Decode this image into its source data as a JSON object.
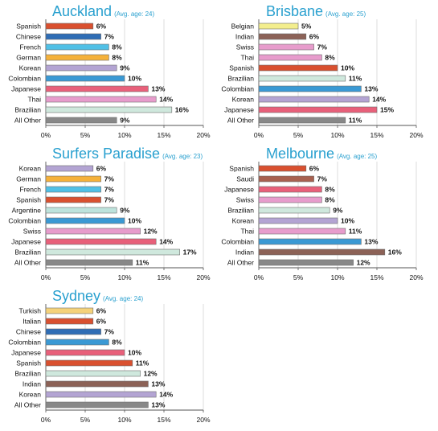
{
  "chart_data": [
    {
      "type": "bar",
      "title": "Auckland",
      "subtitle": "(Avg. age: 24)",
      "categories": [
        "Spanish",
        "Chinese",
        "French",
        "German",
        "Korean",
        "Colombian",
        "Japanese",
        "Thai",
        "Brazilian",
        "All Other"
      ],
      "values": [
        6,
        7,
        8,
        8,
        9,
        10,
        13,
        14,
        16,
        9
      ],
      "value_labels": [
        "6%",
        "7%",
        "8%",
        "8%",
        "9%",
        "10%",
        "13%",
        "14%",
        "16%",
        "9%"
      ],
      "colors": [
        "#d9502f",
        "#2f6db5",
        "#50c0e6",
        "#f5b13a",
        "#b3a4d3",
        "#3a99d4",
        "#e8607a",
        "#e79ccc",
        "#cfe8dd",
        "#888888"
      ],
      "xlim": [
        0,
        20
      ],
      "xticks": [
        "0%",
        "5%",
        "10%",
        "15%",
        "20%"
      ]
    },
    {
      "type": "bar",
      "title": "Brisbane",
      "subtitle": "(Avg. age: 25)",
      "categories": [
        "Belgian",
        "Indian",
        "Swiss",
        "Thai",
        "Spanish",
        "Brazilian",
        "Colombian",
        "Korean",
        "Japanese",
        "All Other"
      ],
      "values": [
        5,
        6,
        7,
        8,
        10,
        11,
        13,
        14,
        15,
        11
      ],
      "value_labels": [
        "5%",
        "6%",
        "7%",
        "8%",
        "10%",
        "11%",
        "13%",
        "14%",
        "15%",
        "11%"
      ],
      "colors": [
        "#f3ee8e",
        "#8c6257",
        "#e79ccc",
        "#e79ccc",
        "#d9502f",
        "#cfe8dd",
        "#3a99d4",
        "#b3a4d3",
        "#e8607a",
        "#888888"
      ],
      "xlim": [
        0,
        20
      ],
      "xticks": [
        "0%",
        "5%",
        "10%",
        "15%",
        "20%"
      ]
    },
    {
      "type": "bar",
      "title": "Surfers Paradise",
      "subtitle": "(Avg. age: 23)",
      "categories": [
        "Korean",
        "German",
        "French",
        "Spanish",
        "Argentine",
        "Colombian",
        "Swiss",
        "Japanese",
        "Brazilian",
        "All Other"
      ],
      "values": [
        6,
        7,
        7,
        7,
        9,
        10,
        12,
        14,
        17,
        11
      ],
      "value_labels": [
        "6%",
        "7%",
        "7%",
        "7%",
        "9%",
        "10%",
        "12%",
        "14%",
        "17%",
        "11%"
      ],
      "colors": [
        "#b3a4d3",
        "#f5b13a",
        "#50c0e6",
        "#d9502f",
        "#bde3dc",
        "#3a99d4",
        "#e79ccc",
        "#e8607a",
        "#cfe8dd",
        "#888888"
      ],
      "xlim": [
        0,
        20
      ],
      "xticks": [
        "0%",
        "5%",
        "10%",
        "15%",
        "20%"
      ]
    },
    {
      "type": "bar",
      "title": "Melbourne",
      "subtitle": "(Avg. age: 25)",
      "categories": [
        "Spanish",
        "Saudi",
        "Japanese",
        "Swiss",
        "Brazilian",
        "Korean",
        "Thai",
        "Colombian",
        "Indian",
        "All Other"
      ],
      "values": [
        6,
        7,
        8,
        8,
        9,
        10,
        11,
        13,
        16,
        12
      ],
      "value_labels": [
        "6%",
        "7%",
        "8%",
        "8%",
        "9%",
        "10%",
        "11%",
        "13%",
        "16%",
        "12%"
      ],
      "colors": [
        "#d9502f",
        "#a8604f",
        "#e8607a",
        "#e79ccc",
        "#cfe8dd",
        "#b3a4d3",
        "#e79ccc",
        "#3a99d4",
        "#8c6257",
        "#888888"
      ],
      "xlim": [
        0,
        20
      ],
      "xticks": [
        "0%",
        "5%",
        "10%",
        "15%",
        "20%"
      ]
    },
    {
      "type": "bar",
      "title": "Sydney",
      "subtitle": "(Avg. age: 24)",
      "categories": [
        "Turkish",
        "Italian",
        "Chinese",
        "Colombian",
        "Japanese",
        "Spanish",
        "Brazilian",
        "Indian",
        "Korean",
        "All Other"
      ],
      "values": [
        6,
        6,
        7,
        8,
        10,
        11,
        12,
        13,
        14,
        13
      ],
      "value_labels": [
        "6%",
        "6%",
        "7%",
        "8%",
        "10%",
        "11%",
        "12%",
        "13%",
        "14%",
        "13%"
      ],
      "colors": [
        "#f5d27a",
        "#d9502f",
        "#2f6db5",
        "#3a99d4",
        "#e8607a",
        "#d9502f",
        "#cfe8dd",
        "#8c6257",
        "#b3a4d3",
        "#888888"
      ],
      "xlim": [
        0,
        20
      ],
      "xticks": [
        "0%",
        "5%",
        "10%",
        "15%",
        "20%"
      ]
    }
  ]
}
